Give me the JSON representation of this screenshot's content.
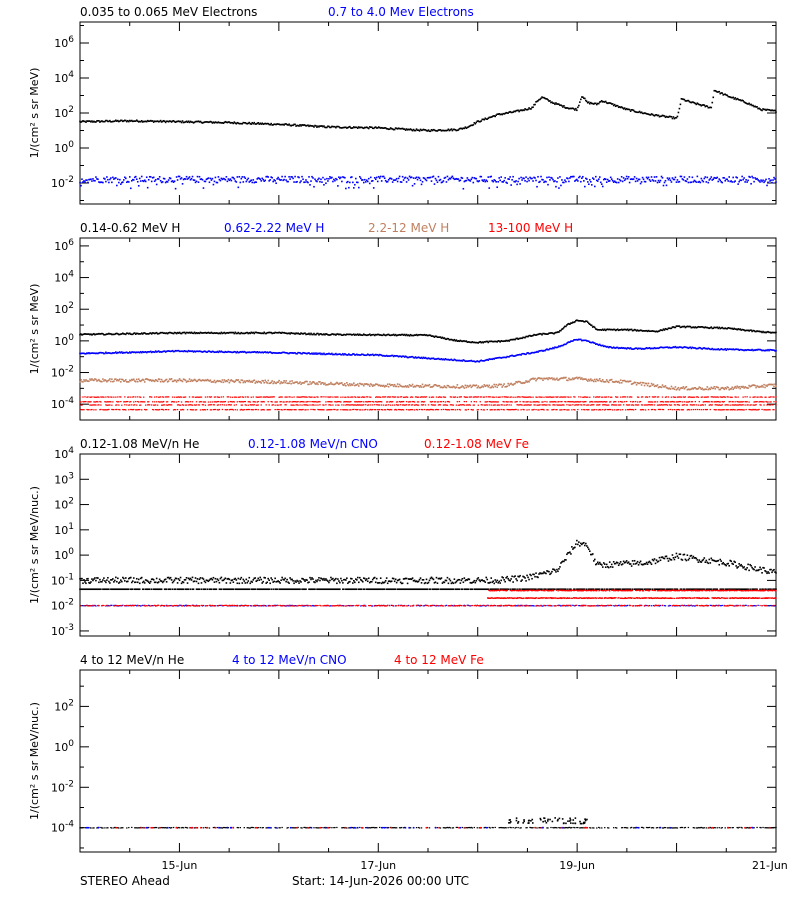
{
  "footer": {
    "spacecraft": "STEREO Ahead",
    "start": "Start: 14-Jun-2026 00:00 UTC"
  },
  "x_axis": {
    "range_days": [
      0,
      7
    ],
    "ticks": [
      {
        "day": 1,
        "label": "15-Jun"
      },
      {
        "day": 3,
        "label": "17-Jun"
      },
      {
        "day": 5,
        "label": "19-Jun"
      },
      {
        "day": 7,
        "label": "21-Jun"
      }
    ]
  },
  "chart_data": [
    {
      "type": "scatter",
      "ylabel": "1/(cm² s sr MeV)",
      "yscale": "log",
      "ylim_exp": [
        -3.2,
        7.2
      ],
      "ytick_exponents": [
        -2,
        0,
        2,
        4,
        6
      ],
      "legend": [
        {
          "text": "0.035 to 0.065 MeV Electrons",
          "color": "#000000"
        },
        {
          "text": "0.7 to 4.0 Mev Electrons",
          "color": "#0000ff"
        }
      ],
      "series": [
        {
          "color": "#000000",
          "pts": [
            [
              0,
              1.5
            ],
            [
              0.5,
              1.55
            ],
            [
              1,
              1.5
            ],
            [
              1.5,
              1.45
            ],
            [
              2,
              1.35
            ],
            [
              2.5,
              1.2
            ],
            [
              3,
              1.15
            ],
            [
              3.3,
              1.05
            ],
            [
              3.5,
              1.0
            ],
            [
              3.8,
              1.05
            ],
            [
              3.9,
              1.2
            ],
            [
              4.0,
              1.5
            ],
            [
              4.2,
              1.9
            ],
            [
              4.4,
              2.1
            ],
            [
              4.55,
              2.3
            ],
            [
              4.6,
              2.7
            ],
            [
              4.65,
              2.9
            ],
            [
              4.75,
              2.6
            ],
            [
              4.9,
              2.3
            ],
            [
              5.0,
              2.2
            ],
            [
              5.05,
              3.0
            ],
            [
              5.1,
              2.6
            ],
            [
              5.2,
              2.5
            ],
            [
              5.25,
              2.7
            ],
            [
              5.35,
              2.5
            ],
            [
              5.5,
              2.2
            ],
            [
              5.75,
              1.9
            ],
            [
              6.0,
              1.7
            ],
            [
              6.0,
              1.55
            ],
            [
              6.05,
              2.8
            ],
            [
              6.15,
              2.6
            ],
            [
              6.35,
              2.3
            ],
            [
              6.38,
              3.3
            ],
            [
              6.5,
              3.0
            ],
            [
              6.7,
              2.6
            ],
            [
              6.85,
              2.2
            ],
            [
              7.0,
              2.1
            ]
          ],
          "noise": 0.05,
          "mode": "interp"
        },
        {
          "color": "#0000ff",
          "pts": [
            [
              0,
              -1.8
            ],
            [
              3,
              -1.8
            ],
            [
              7,
              -1.8
            ]
          ],
          "noise": 0.18,
          "mode": "flat"
        }
      ]
    },
    {
      "type": "scatter",
      "ylabel": "1/(cm² s sr MeV)",
      "yscale": "log",
      "ylim_exp": [
        -5,
        6.5
      ],
      "ytick_exponents": [
        -4,
        -2,
        0,
        2,
        4,
        6
      ],
      "legend": [
        {
          "text": "0.14-0.62 MeV H",
          "color": "#000000"
        },
        {
          "text": "0.62-2.22 MeV H",
          "color": "#0000ff"
        },
        {
          "text": "2.2-12 MeV H",
          "color": "#c08060"
        },
        {
          "text": "13-100 MeV H",
          "color": "#ff0000"
        }
      ],
      "series": [
        {
          "color": "#000000",
          "pts": [
            [
              0,
              0.4
            ],
            [
              1,
              0.5
            ],
            [
              2,
              0.5
            ],
            [
              2.5,
              0.4
            ],
            [
              3.5,
              0.35
            ],
            [
              3.8,
              0.0
            ],
            [
              4.0,
              -0.1
            ],
            [
              4.3,
              0.0
            ],
            [
              4.6,
              0.4
            ],
            [
              4.8,
              0.5
            ],
            [
              4.9,
              1.0
            ],
            [
              5.0,
              1.3
            ],
            [
              5.1,
              1.2
            ],
            [
              5.2,
              0.7
            ],
            [
              5.5,
              0.7
            ],
            [
              5.8,
              0.6
            ],
            [
              6.0,
              0.9
            ],
            [
              6.5,
              0.8
            ],
            [
              6.8,
              0.6
            ],
            [
              7.0,
              0.5
            ]
          ],
          "noise": 0.04,
          "mode": "interp"
        },
        {
          "color": "#0000ff",
          "pts": [
            [
              0,
              -0.8
            ],
            [
              1,
              -0.65
            ],
            [
              2,
              -0.75
            ],
            [
              3,
              -0.9
            ],
            [
              3.5,
              -1.1
            ],
            [
              4.0,
              -1.3
            ],
            [
              4.3,
              -1.0
            ],
            [
              4.6,
              -0.7
            ],
            [
              4.8,
              -0.4
            ],
            [
              5.0,
              0.1
            ],
            [
              5.1,
              0.0
            ],
            [
              5.3,
              -0.4
            ],
            [
              5.6,
              -0.5
            ],
            [
              6.0,
              -0.4
            ],
            [
              6.5,
              -0.55
            ],
            [
              7.0,
              -0.6
            ]
          ],
          "noise": 0.04,
          "mode": "interp"
        },
        {
          "color": "#c08060",
          "pts": [
            [
              0,
              -2.5
            ],
            [
              1,
              -2.5
            ],
            [
              2,
              -2.6
            ],
            [
              3,
              -2.8
            ],
            [
              4.0,
              -2.9
            ],
            [
              4.3,
              -2.8
            ],
            [
              4.6,
              -2.4
            ],
            [
              5.0,
              -2.4
            ],
            [
              5.5,
              -2.6
            ],
            [
              6.0,
              -3.0
            ],
            [
              6.5,
              -3.0
            ],
            [
              7.0,
              -2.8
            ]
          ],
          "noise": 0.1,
          "mode": "interp"
        },
        {
          "color": "#ff0000",
          "pts": [
            [
              0,
              -3.6
            ],
            [
              7,
              -3.6
            ]
          ],
          "noise": 0.0,
          "mode": "bands",
          "bands": [
            -3.55,
            -3.85,
            -4.05,
            -4.35
          ]
        }
      ]
    },
    {
      "type": "scatter",
      "ylabel": "1/(cm² s sr MeV/nuc.)",
      "yscale": "log",
      "ylim_exp": [
        -3.2,
        4
      ],
      "ytick_exponents": [
        -3,
        -2,
        -1,
        0,
        1,
        2,
        3,
        4
      ],
      "legend": [
        {
          "text": "0.12-1.08 MeV/n He",
          "color": "#000000"
        },
        {
          "text": "0.12-1.08 MeV/n CNO",
          "color": "#0000ff"
        },
        {
          "text": "0.12-1.08 MeV Fe",
          "color": "#ff0000"
        }
      ],
      "series": [
        {
          "color": "#000000",
          "pts": [
            [
              0,
              -1.0
            ],
            [
              4.2,
              -1.0
            ],
            [
              4.5,
              -0.9
            ],
            [
              4.8,
              -0.6
            ],
            [
              5.0,
              0.5
            ],
            [
              5.1,
              0.4
            ],
            [
              5.2,
              -0.4
            ],
            [
              5.7,
              -0.3
            ],
            [
              6.0,
              -0.05
            ],
            [
              6.5,
              -0.3
            ],
            [
              7.0,
              -0.7
            ]
          ],
          "noise": 0.12,
          "mode": "interp",
          "base_exp": -1.35
        },
        {
          "color": "#0000ff",
          "pts": [
            [
              0,
              -2.0
            ],
            [
              7,
              -2.0
            ]
          ],
          "noise": 0.0,
          "mode": "bands",
          "bands": [
            -2.0
          ]
        },
        {
          "color": "#ff0000",
          "pts": [
            [
              0,
              -2.0
            ],
            [
              7,
              -2.0
            ]
          ],
          "noise": 0.0,
          "mode": "bands",
          "bands": [
            -2.0,
            -1.7,
            -1.4
          ],
          "start_day": 4.1
        }
      ]
    },
    {
      "type": "scatter",
      "ylabel": "1/(cm² s sr MeV/nuc.)",
      "yscale": "log",
      "ylim_exp": [
        -5.2,
        3.8
      ],
      "ytick_exponents": [
        -4,
        -2,
        0,
        2
      ],
      "legend": [
        {
          "text": "4 to 12 MeV/n He",
          "color": "#000000"
        },
        {
          "text": "4 to 12 MeV/n CNO",
          "color": "#0000ff"
        },
        {
          "text": "4 to 12 MeV Fe",
          "color": "#ff0000"
        }
      ],
      "series": [
        {
          "color": "#000000",
          "pts": [
            [
              0,
              -4.0
            ],
            [
              7,
              -4.0
            ]
          ],
          "noise": 0.0,
          "mode": "bands",
          "bands": [
            -4.0
          ],
          "extra": [
            [
              4.3,
              5.1,
              -3.5,
              -3.8
            ]
          ]
        },
        {
          "color": "#0000ff",
          "pts": [
            [
              0,
              -4.0
            ],
            [
              7,
              -4.0
            ]
          ],
          "noise": 0.0,
          "mode": "sparse"
        },
        {
          "color": "#ff0000",
          "pts": [
            [
              0,
              -4.0
            ],
            [
              7,
              -4.0
            ]
          ],
          "noise": 0.0,
          "mode": "sparse"
        }
      ]
    }
  ]
}
